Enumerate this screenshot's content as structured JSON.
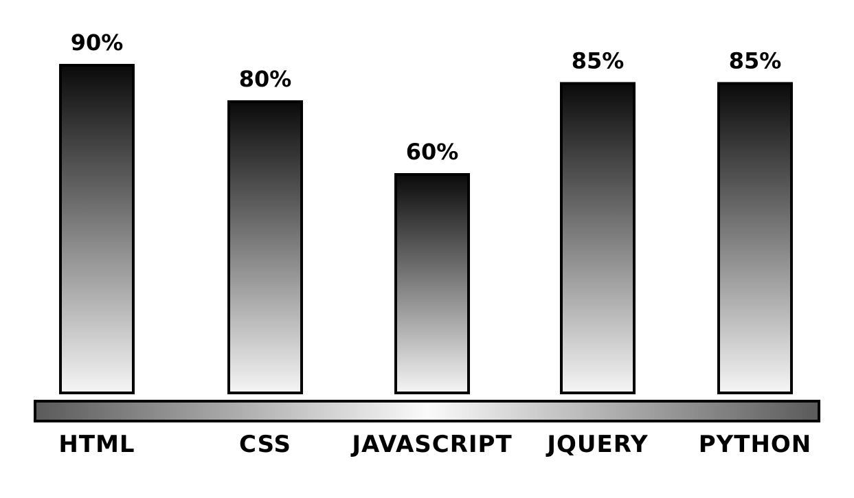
{
  "chart_data": {
    "type": "bar",
    "categories": [
      "HTML",
      "CSS",
      "JAVASCRIPT",
      "JQUERY",
      "PYTHON"
    ],
    "values": [
      90,
      80,
      60,
      85,
      85
    ],
    "value_labels": [
      "90%",
      "80%",
      "60%",
      "85%",
      "85%"
    ],
    "ylim": [
      0,
      100
    ],
    "grid": false,
    "legend": "none",
    "title": "",
    "xlabel": "",
    "ylabel": ""
  },
  "colors": {
    "bar_top": "#0a0a0a",
    "bar_bottom": "#f5f5f5",
    "outline": "#000000",
    "baseline_center": "#fafafa",
    "baseline_edge": "#5a5a5a"
  }
}
